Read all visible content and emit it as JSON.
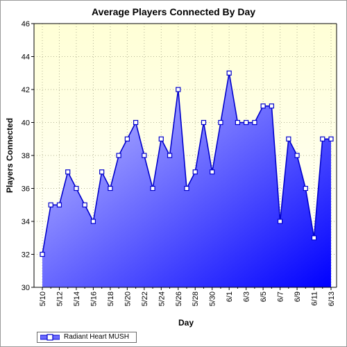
{
  "chart_data": {
    "type": "area",
    "title": "Average Players Connected By Day",
    "xlabel": "Day",
    "ylabel": "Players Connected",
    "ylim": [
      30,
      46
    ],
    "yticks": [
      30,
      32,
      34,
      36,
      38,
      40,
      42,
      44,
      46
    ],
    "x": [
      "5/10",
      "5/11",
      "5/12",
      "5/13",
      "5/14",
      "5/15",
      "5/16",
      "5/17",
      "5/18",
      "5/19",
      "5/20",
      "5/21",
      "5/22",
      "5/23",
      "5/24",
      "5/25",
      "5/26",
      "5/27",
      "5/28",
      "5/29",
      "5/30",
      "5/31",
      "6/1",
      "6/2",
      "6/3",
      "6/4",
      "6/5",
      "6/6",
      "6/7",
      "6/8",
      "6/9",
      "6/10",
      "6/11",
      "6/12",
      "6/13"
    ],
    "xtick_labels": [
      "5/10",
      "5/12",
      "5/14",
      "5/16",
      "5/18",
      "5/20",
      "5/22",
      "5/24",
      "5/26",
      "5/28",
      "5/30",
      "6/1",
      "6/3",
      "6/5",
      "6/7",
      "6/9",
      "6/11",
      "6/13"
    ],
    "series": [
      {
        "name": "Radiant Heart MUSH",
        "values": [
          32,
          35,
          35,
          37,
          36,
          35,
          34,
          37,
          36,
          38,
          39,
          40,
          38,
          36,
          39,
          38,
          42,
          36,
          37,
          40,
          37,
          40,
          43,
          40,
          40,
          40,
          41,
          41,
          34,
          39,
          38,
          36,
          33,
          39,
          39
        ]
      }
    ],
    "grid": true,
    "legend_position": "bottom-left",
    "colors": {
      "line": "#0000cc",
      "fill_light": "#c8c8ff",
      "fill_dark": "#0000ff",
      "plot_bg_top": "#ffffd8",
      "plot_bg_bottom": "#ffffff",
      "grid": "#c8c8a0"
    }
  }
}
